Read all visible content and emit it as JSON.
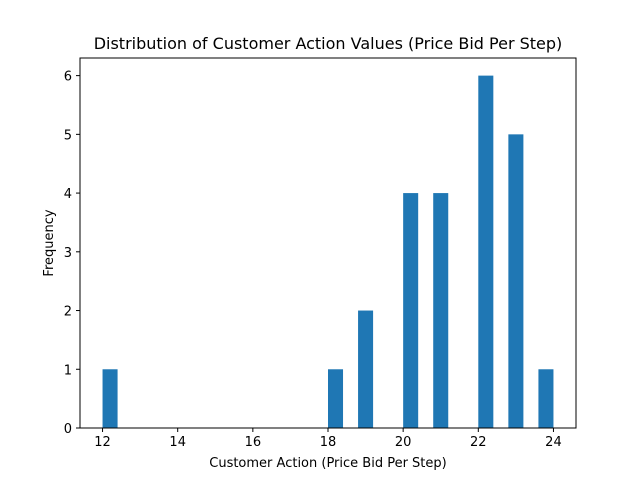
{
  "chart_data": {
    "type": "bar",
    "title": "Distribution of Customer Action Values (Price Bid Per Step)",
    "xlabel": "Customer Action (Price Bid Per Step)",
    "ylabel": "Frequency",
    "xlim": [
      11.4,
      24.6
    ],
    "ylim": [
      0,
      6.3
    ],
    "xticks": [
      12,
      14,
      16,
      18,
      20,
      22,
      24
    ],
    "yticks": [
      0,
      1,
      2,
      3,
      4,
      5,
      6
    ],
    "bar_width": 0.4,
    "bars": [
      {
        "x": 12.2,
        "value": 1
      },
      {
        "x": 18.2,
        "value": 1
      },
      {
        "x": 19.0,
        "value": 2
      },
      {
        "x": 20.2,
        "value": 4
      },
      {
        "x": 21.0,
        "value": 4
      },
      {
        "x": 22.2,
        "value": 6
      },
      {
        "x": 23.0,
        "value": 5
      },
      {
        "x": 23.8,
        "value": 1
      }
    ],
    "bar_color": "#1f77b4",
    "grid": false
  }
}
